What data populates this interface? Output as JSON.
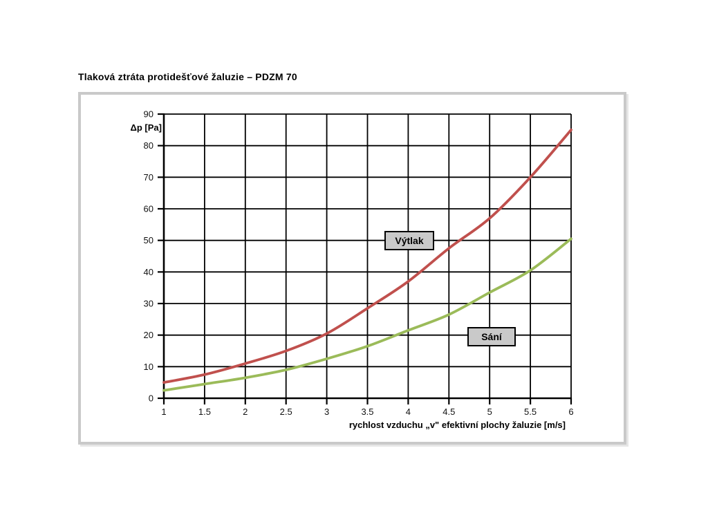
{
  "page": {
    "title": "Tlaková ztráta protidešťové žaluzie – PDZM 70",
    "background": "#ffffff"
  },
  "chart_data": {
    "type": "line",
    "title": "Tlaková ztráta protidešťové žaluzie – PDZM 70",
    "xlabel": "rychlost vzduchu „v\" efektivní plochy žaluzie [m/s]",
    "ylabel": "Δp [Pa]",
    "xlim": [
      1,
      6
    ],
    "ylim": [
      0,
      90
    ],
    "x_ticks": [
      1,
      1.5,
      2,
      2.5,
      3,
      3.5,
      4,
      4.5,
      5,
      5.5,
      6
    ],
    "x_tick_labels": [
      "1",
      "1.5",
      "2",
      "2.5",
      "3",
      "3.5",
      "4",
      "4.5",
      "5",
      "5.5",
      "6"
    ],
    "y_ticks": [
      0,
      10,
      20,
      30,
      40,
      50,
      60,
      70,
      80,
      90
    ],
    "grid": "full black grid, cells 0.5 m/s × 10 Pa",
    "legend_position": "boxed labels placed on plot area",
    "x": [
      1,
      1.5,
      2,
      2.5,
      3,
      3.5,
      4,
      4.5,
      5,
      5.5,
      6
    ],
    "series": [
      {
        "name": "Výtlak",
        "color": "#c0504d",
        "values": [
          5,
          7.5,
          11,
          15,
          20.5,
          28.5,
          37,
          47.5,
          57,
          70,
          85
        ]
      },
      {
        "name": "Sání",
        "color": "#9bbb59",
        "values": [
          2.5,
          4.5,
          6.5,
          9,
          12.5,
          16.5,
          21.5,
          26.5,
          33.5,
          40.5,
          50.5
        ]
      }
    ],
    "annotations": [
      {
        "text": "Výtlak",
        "near_x": 4,
        "near_y": 50,
        "box_fill": "#c9c9c9",
        "box_border": "#000000"
      },
      {
        "text": "Sání",
        "near_x": 5,
        "near_y": 20,
        "box_fill": "#c9c9c9",
        "box_border": "#000000"
      }
    ]
  },
  "colors": {
    "frame_border": "#c9c9c9",
    "grid_line": "#000000",
    "vytlak_line": "#c0504d",
    "sani_line": "#9bbb59",
    "label_box_fill": "#c9c9c9",
    "text": "#000000"
  }
}
